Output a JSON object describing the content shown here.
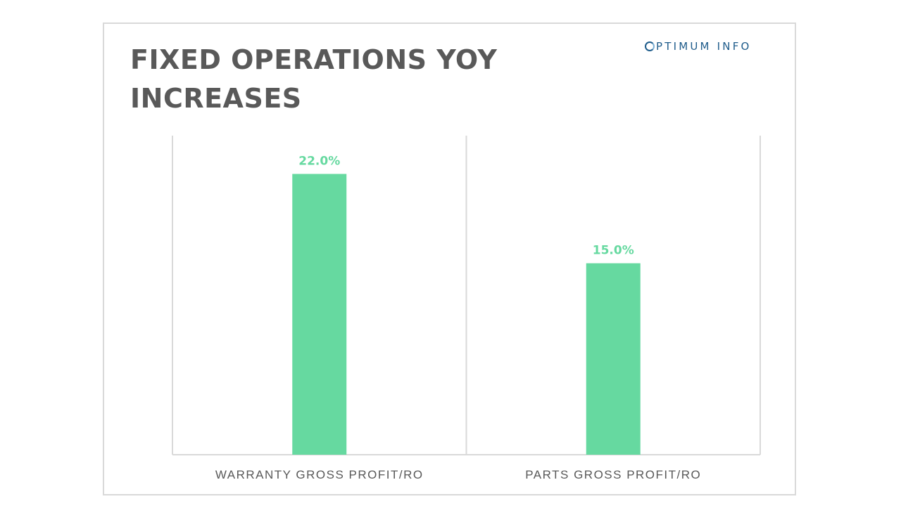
{
  "slide": {
    "title": "FIXED OPERATIONS YOY INCREASES",
    "logo_text": "PTIMUM INFO",
    "logo_initial": "O",
    "colors": {
      "bar": "#66d9a0",
      "label": "#66d9a0",
      "text": "#595959",
      "logo": "#1f5c8b"
    }
  },
  "chart_data": {
    "type": "bar",
    "categories": [
      "WARRANTY GROSS PROFIT/RO",
      "PARTS GROSS PROFIT/RO"
    ],
    "values": [
      22.0,
      15.0
    ],
    "value_labels": [
      "22.0%",
      "15.0%"
    ],
    "ylim": [
      0,
      25
    ],
    "grid": false,
    "legend": "none",
    "title": "FIXED OPERATIONS YOY INCREASES",
    "xlabel": "",
    "ylabel": ""
  }
}
